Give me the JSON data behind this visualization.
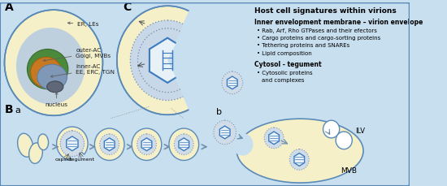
{
  "bg_color": "#c8dff0",
  "title": "Host cell signatures within virions",
  "inner_env_title": "Inner envelopment membrane – virion envelope",
  "inner_env_bullets": [
    "Rab, Arf, Rho GTPases and their efectors",
    "Cargo proteins and cargo-sorting proteins",
    "Tethering proteins and SNAREs",
    "Lipid composition"
  ],
  "cytosol_title": "Cytosol - tegument",
  "cytosol_bullets": [
    "Cytosolic proteins",
    "and complexes"
  ],
  "labels": {
    "A": "A",
    "B": "B",
    "Ba": "a",
    "C": "C",
    "b": "b"
  },
  "annotations": {
    "ER_LEs": "ER, LEs",
    "outer_AC": "outer-AC\nGolgi, MVBs",
    "inner_AC": "inner-AC\nEE, ERC, TGN",
    "nucleus": "nucleus",
    "capsid": "capsid",
    "tegument": "tegument",
    "ILV": "ILV",
    "MVB": "MVB"
  },
  "colors": {
    "pale_yellow": "#f5f0c8",
    "dark_blue": "#3a7abf",
    "green": "#4a8a3a",
    "orange": "#c87820",
    "gray_blue": "#8098b0",
    "dotted_fill": "#d0dce8",
    "outline_blue": "#5a8ab8",
    "arrow_blue": "#7090b0",
    "border_blue": "#5a8ab8",
    "er_blue": "#b8cce0",
    "inner_ac_blue": "#8098b8",
    "nucleus_gray": "#606878"
  }
}
